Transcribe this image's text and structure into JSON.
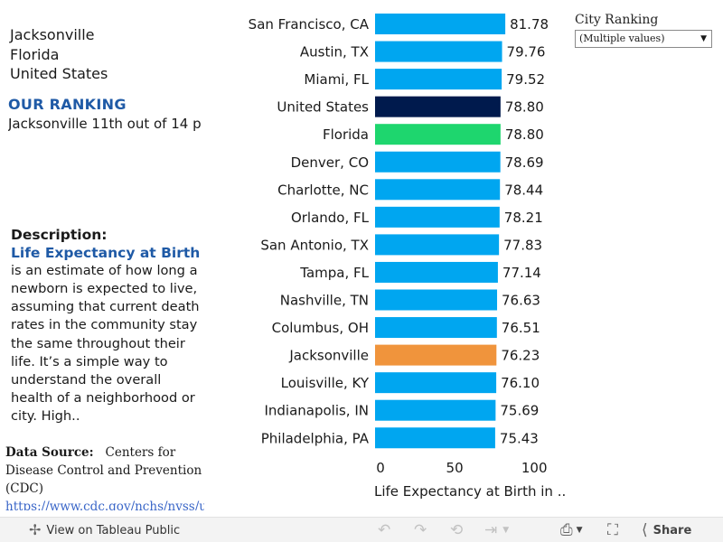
{
  "location": {
    "city": "Jacksonville",
    "state": "Florida",
    "country": "United States"
  },
  "ranking": {
    "heading": "OUR RANKING",
    "text": "Jacksonville 11th out of 14 p"
  },
  "description": {
    "heading": "Description:",
    "term": "Life Expectancy at Birth",
    "body": "is an estimate of how long a newborn is expected to live, assuming that current death rates in the community stay the same throughout their life. It’s a simple way to understand the overall health of a neighborhood or city. High.."
  },
  "source": {
    "label": "Data Source:",
    "text": "Centers for Disease Control and Prevention (CDC)",
    "link": "https://www.cdc.gov/nchs/nvss/usale"
  },
  "filter": {
    "title": "City Ranking",
    "value": "(Multiple values)"
  },
  "toolbar": {
    "view_label": "View on Tableau Public",
    "share_label": "Share"
  },
  "chart_data": {
    "type": "bar",
    "orientation": "horizontal",
    "xlabel": "Life Expectancy at Birth in ..",
    "xlim": [
      0,
      100
    ],
    "xticks": [
      0,
      50,
      100
    ],
    "grid": false,
    "colors": {
      "default": "#00a6f0",
      "United States": "#001a4d",
      "Florida": "#1ed66e",
      "Jacksonville": "#f0943c"
    },
    "categories": [
      "San Francisco, CA",
      "Austin, TX",
      "Miami, FL",
      "United States",
      "Florida",
      "Denver, CO",
      "Charlotte, NC",
      "Orlando, FL",
      "San Antonio, TX",
      "Tampa, FL",
      "Nashville, TN",
      "Columbus, OH",
      "Jacksonville",
      "Louisville, KY",
      "Indianapolis, IN",
      "Philadelphia, PA"
    ],
    "values": [
      81.78,
      79.76,
      79.52,
      78.8,
      78.8,
      78.69,
      78.44,
      78.21,
      77.83,
      77.14,
      76.63,
      76.51,
      76.23,
      76.1,
      75.69,
      75.43
    ],
    "value_labels": [
      "81.78",
      "79.76",
      "79.52",
      "78.80",
      "78.80",
      "78.69",
      "78.44",
      "78.21",
      "77.83",
      "77.14",
      "76.63",
      "76.51",
      "76.23",
      "76.10",
      "75.69",
      "75.43"
    ]
  }
}
